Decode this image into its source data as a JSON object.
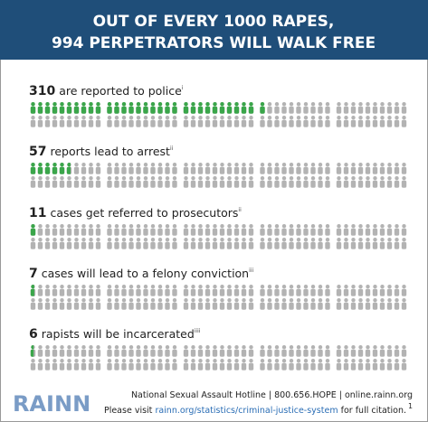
{
  "header": {
    "title_lines": [
      "OUT OF EVERY 1000 RAPES,",
      "994 PERPETRATORS WILL WALK FREE"
    ]
  },
  "chart_data": {
    "type": "pictograph",
    "xlim": [
      0,
      1000
    ],
    "color": "#3aa64a",
    "base_color": "#b3b3b3",
    "rows": [
      {
        "value": 310,
        "label": "are reported to police",
        "note": "i"
      },
      {
        "value": 57,
        "label": "reports lead to arrest",
        "note": "ii"
      },
      {
        "value": 11,
        "label": "cases get referred to prosecutors",
        "note": "ii"
      },
      {
        "value": 7,
        "label": "cases will lead to a felony conviction",
        "note": "iii"
      },
      {
        "value": 6,
        "label": "rapists will be incarcerated",
        "note": "iiii"
      }
    ]
  },
  "footer": {
    "logo": "RAINN",
    "hotline": "National Sexual Assault Hotline | 800.656.HOPE | online.rainn.org",
    "visit": "Please visit",
    "link": "rainn.org/statistics/criminal-justice-system",
    "rest": "for full citation.",
    "note": "1"
  }
}
